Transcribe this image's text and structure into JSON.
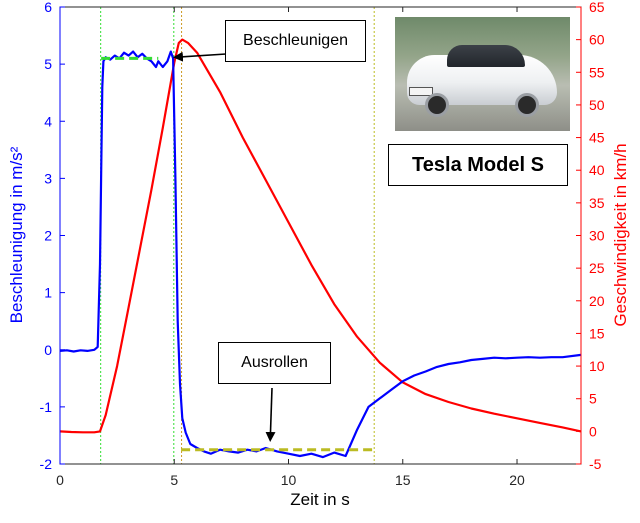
{
  "chart_data": {
    "type": "line",
    "xlabel": "Zeit in s",
    "ylabel_left": "Beschleunigung in m/s²",
    "ylabel_right": "Geschwindigkeit in km/h",
    "xlim": [
      0,
      22.8
    ],
    "ylim_left": [
      -2,
      6
    ],
    "ylim_right": [
      -5,
      65
    ],
    "x_ticks": [
      0,
      5,
      10,
      15,
      20
    ],
    "y_ticks_left": [
      -2,
      -1,
      0,
      1,
      2,
      3,
      4,
      5,
      6
    ],
    "y_ticks_right": [
      -5,
      0,
      5,
      10,
      15,
      20,
      25,
      30,
      35,
      40,
      45,
      50,
      55,
      60,
      65
    ],
    "grid": false,
    "colors": {
      "acceleration": "#0000ff",
      "speed": "#ff0000",
      "accel_mean": "#33dd33",
      "coast_mean": "#bbbb22",
      "axis_left": "#0000ff",
      "axis_right": "#ff0000"
    },
    "series": [
      {
        "axis": "left",
        "points": [
          [
            0,
            -0.02
          ],
          [
            0.3,
            -0.01
          ],
          [
            0.6,
            -0.03
          ],
          [
            0.9,
            -0.01
          ],
          [
            1.2,
            -0.02
          ],
          [
            1.5,
            0.0
          ],
          [
            1.65,
            0.05
          ],
          [
            1.75,
            1.5
          ],
          [
            1.8,
            3.0
          ],
          [
            1.85,
            4.6
          ],
          [
            1.9,
            5.05
          ],
          [
            2.0,
            5.12
          ],
          [
            2.2,
            5.08
          ],
          [
            2.4,
            5.15
          ],
          [
            2.6,
            5.1
          ],
          [
            2.8,
            5.2
          ],
          [
            3.0,
            5.15
          ],
          [
            3.2,
            5.22
          ],
          [
            3.4,
            5.12
          ],
          [
            3.6,
            5.18
          ],
          [
            3.8,
            5.1
          ],
          [
            4.0,
            5.05
          ],
          [
            4.2,
            4.95
          ],
          [
            4.3,
            5.05
          ],
          [
            4.5,
            4.95
          ],
          [
            4.7,
            5.05
          ],
          [
            4.85,
            5.22
          ],
          [
            4.95,
            5.1
          ],
          [
            5.05,
            3.0
          ],
          [
            5.15,
            0.5
          ],
          [
            5.25,
            -0.6
          ],
          [
            5.35,
            -1.2
          ],
          [
            5.5,
            -1.45
          ],
          [
            5.7,
            -1.65
          ],
          [
            6.0,
            -1.72
          ],
          [
            6.3,
            -1.78
          ],
          [
            6.6,
            -1.82
          ],
          [
            7.0,
            -1.75
          ],
          [
            7.4,
            -1.78
          ],
          [
            7.8,
            -1.8
          ],
          [
            8.2,
            -1.75
          ],
          [
            8.6,
            -1.78
          ],
          [
            9.0,
            -1.72
          ],
          [
            9.5,
            -1.78
          ],
          [
            10.0,
            -1.82
          ],
          [
            10.5,
            -1.86
          ],
          [
            11.0,
            -1.82
          ],
          [
            11.5,
            -1.88
          ],
          [
            12.0,
            -1.8
          ],
          [
            12.5,
            -1.86
          ],
          [
            13.0,
            -1.4
          ],
          [
            13.5,
            -1.0
          ],
          [
            14.0,
            -0.85
          ],
          [
            14.5,
            -0.7
          ],
          [
            15.0,
            -0.55
          ],
          [
            15.5,
            -0.45
          ],
          [
            16.0,
            -0.38
          ],
          [
            16.5,
            -0.3
          ],
          [
            17.0,
            -0.25
          ],
          [
            17.5,
            -0.22
          ],
          [
            18.0,
            -0.18
          ],
          [
            18.5,
            -0.16
          ],
          [
            19.0,
            -0.14
          ],
          [
            19.5,
            -0.15
          ],
          [
            20.0,
            -0.14
          ],
          [
            20.5,
            -0.13
          ],
          [
            21.0,
            -0.14
          ],
          [
            21.5,
            -0.13
          ],
          [
            22.0,
            -0.13
          ],
          [
            22.8,
            -0.09
          ]
        ]
      },
      {
        "axis": "right",
        "points": [
          [
            0,
            0.0
          ],
          [
            0.5,
            -0.1
          ],
          [
            1.0,
            -0.15
          ],
          [
            1.5,
            -0.15
          ],
          [
            1.75,
            0.0
          ],
          [
            2.0,
            2.5
          ],
          [
            2.5,
            10.0
          ],
          [
            3.0,
            19.0
          ],
          [
            3.5,
            28.0
          ],
          [
            4.0,
            37.0
          ],
          [
            4.5,
            46.5
          ],
          [
            5.0,
            56.5
          ],
          [
            5.2,
            59.5
          ],
          [
            5.35,
            60.0
          ],
          [
            5.6,
            59.5
          ],
          [
            6.0,
            58.0
          ],
          [
            7.0,
            52.0
          ],
          [
            8.0,
            45.0
          ],
          [
            9.0,
            38.5
          ],
          [
            10.0,
            32.0
          ],
          [
            11.0,
            25.5
          ],
          [
            12.0,
            19.5
          ],
          [
            13.0,
            14.5
          ],
          [
            14.0,
            10.5
          ],
          [
            15.0,
            7.5
          ],
          [
            16.0,
            5.7
          ],
          [
            17.0,
            4.5
          ],
          [
            18.0,
            3.5
          ],
          [
            19.0,
            2.7
          ],
          [
            20.0,
            2.0
          ],
          [
            21.0,
            1.3
          ],
          [
            22.0,
            0.6
          ],
          [
            22.8,
            0.0
          ]
        ]
      }
    ],
    "mean_lines": [
      {
        "axis": "left",
        "x": [
          1.8,
          4.3
        ],
        "y": 5.1
      },
      {
        "axis": "left",
        "x": [
          5.3,
          13.8
        ],
        "y": -1.75
      }
    ],
    "vlines": [
      {
        "x": 1.78
      },
      {
        "x": 4.98
      },
      {
        "x": 5.32
      },
      {
        "x": 13.75
      }
    ],
    "annotations": [
      {
        "text": "Beschleunigen",
        "arrow_to": {
          "x": 4.9,
          "y": 5.12
        }
      },
      {
        "text": "Ausrollen",
        "arrow_to": {
          "x": 9.2,
          "y": -1.72
        }
      }
    ]
  },
  "inset": {
    "model_label": "Tesla Model S",
    "photo_subject": "white Tesla Model S sedan",
    "photo_icon": "car-photo"
  }
}
